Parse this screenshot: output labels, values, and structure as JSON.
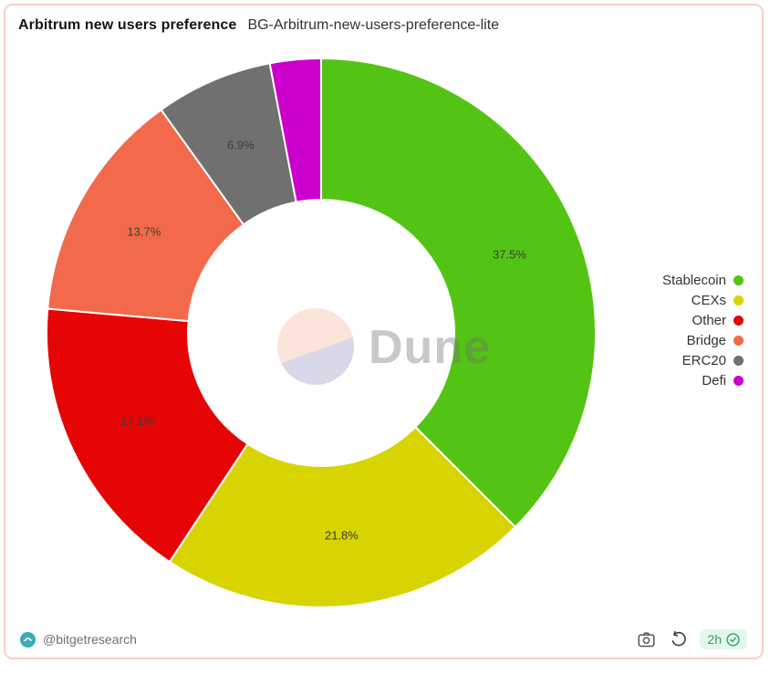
{
  "header": {
    "title": "Arbitrum new users preference",
    "subtitle": "BG-Arbitrum-new-users-preference-lite"
  },
  "chart_data": {
    "type": "pie",
    "subtype": "donut",
    "title": "Arbitrum new users preference",
    "categories": [
      "Stablecoin",
      "CEXs",
      "Other",
      "Bridge",
      "ERC20",
      "Defi"
    ],
    "values": [
      37.5,
      21.8,
      17.1,
      13.7,
      6.9,
      3.0
    ],
    "unit": "%",
    "colors": [
      "#53c413",
      "#d8d401",
      "#e60505",
      "#f26a4b",
      "#707070",
      "#cc00cc"
    ],
    "shown_labels": [
      "37.5%",
      "21.8%",
      "17.1%",
      "13.7%",
      "6.9%"
    ],
    "label_min_pct": 5,
    "start_angle_deg": 0,
    "direction": "clockwise",
    "legend_position": "right",
    "inner_radius_ratio": 0.485,
    "label_text_color": "#3d3d3d",
    "slice_gap_color": "#ffffff"
  },
  "watermark": {
    "text": "Dune"
  },
  "footer": {
    "handle": "@bitgetresearch",
    "avatar_color": "#3aacb4",
    "icons": [
      "bitget-logo",
      "camera",
      "refresh-ccw"
    ],
    "age_badge": {
      "text": "2h",
      "icon": "verified-check",
      "text_color": "#27a567",
      "bg_color": "#e4f7ec"
    }
  }
}
